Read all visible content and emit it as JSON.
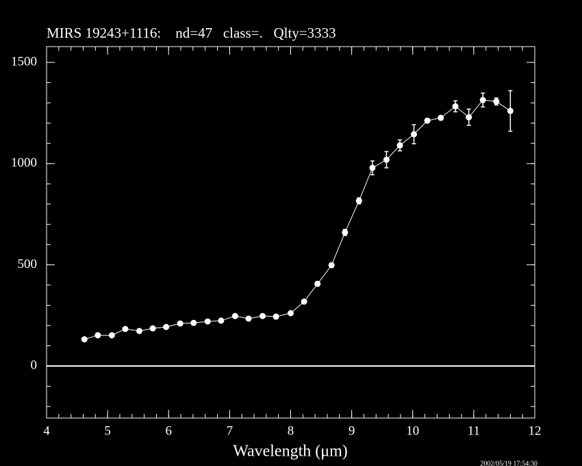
{
  "chart_data": {
    "type": "line",
    "title": "MIRS 19243+1116:    nd=47   class=.   Qlty=3333",
    "xlabel": "Wavelength (μm)",
    "timestamp": "2002/05/19 17:54:30",
    "x": [
      4.62,
      4.84,
      5.07,
      5.29,
      5.52,
      5.74,
      5.96,
      6.19,
      6.41,
      6.64,
      6.86,
      7.09,
      7.31,
      7.54,
      7.76,
      8.0,
      8.22,
      8.44,
      8.67,
      8.89,
      9.12,
      9.34,
      9.57,
      9.79,
      10.02,
      10.24,
      10.46,
      10.7,
      10.92,
      11.15,
      11.37,
      11.6
    ],
    "values": [
      132,
      152,
      152,
      183,
      173,
      186,
      193,
      210,
      213,
      220,
      224,
      247,
      234,
      247,
      244,
      261,
      318,
      406,
      498,
      660,
      816,
      979,
      1019,
      1090,
      1145,
      1212,
      1226,
      1283,
      1229,
      1314,
      1307,
      1260
    ],
    "errors": [
      6,
      6,
      6,
      6,
      6,
      6,
      6,
      6,
      6,
      6,
      6,
      6,
      6,
      6,
      6,
      8,
      8,
      10,
      10,
      15,
      15,
      34,
      40,
      27,
      47,
      10,
      10,
      27,
      40,
      34,
      17,
      100
    ],
    "color": "#ffffff",
    "xlim": [
      4,
      12
    ],
    "ylim": [
      -257,
      1578
    ],
    "xticks": [
      4,
      5,
      6,
      7,
      8,
      9,
      10,
      11,
      12
    ],
    "yticks": [
      0,
      500,
      1000,
      1500
    ],
    "xminor": 0.2,
    "yminor": 100,
    "hline": 0
  }
}
